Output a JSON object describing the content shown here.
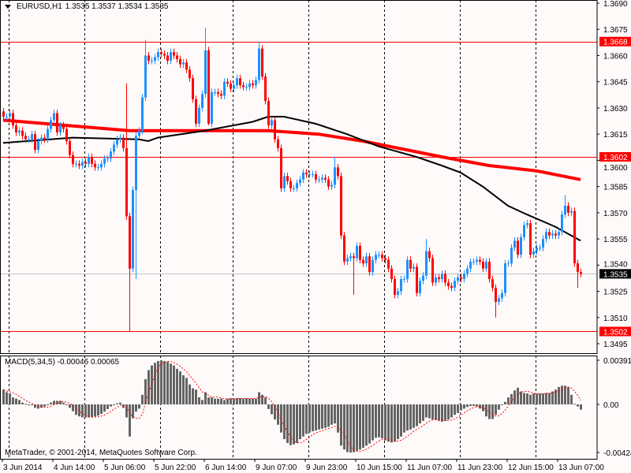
{
  "header": {
    "symbol_timeframe": "EURUSD,H1",
    "ohlc_text": "1.3535 1.3537 1.3534 1.3535",
    "menu_icon": "triangle-down-icon"
  },
  "macd_label": "MACD(5,34,5) -0.00046 0.00065",
  "copyright": "MetaTrader, © 2001-2014, MetaQuotes Software Corp.",
  "colors": {
    "background": "#fffafa",
    "bull": "#1e90ff",
    "bear": "#ff0000",
    "ma_slow": "#ff0000",
    "ma_fast": "#000000",
    "macd_hist": "#646464",
    "macd_signal": "#ff0000",
    "level_line": "#ff0000",
    "bid_line": "#c0c0c0"
  },
  "chart_data": [
    {
      "type": "candlestick",
      "symbol": "EURUSD",
      "timeframe": "H1",
      "ylim": [
        1.3495,
        1.369
      ],
      "y_ticks": [
        "1.3690",
        "1.3675",
        "1.3660",
        "1.3645",
        "1.3630",
        "1.3615",
        "1.3600",
        "1.3585",
        "1.3570",
        "1.3555",
        "1.3540",
        "1.3525",
        "1.3510",
        "1.3495"
      ],
      "x_tick_labels": [
        {
          "bar": 0,
          "label": "3 Jun 2014"
        },
        {
          "bar": 16,
          "label": "4 Jun 14:00"
        },
        {
          "bar": 32,
          "label": "5 Jun 06:00"
        },
        {
          "bar": 48,
          "label": "5 Jun 22:00"
        },
        {
          "bar": 64,
          "label": "6 Jun 14:00"
        },
        {
          "bar": 80,
          "label": "9 Jun 07:00"
        },
        {
          "bar": 96,
          "label": "9 Jun 23:00"
        },
        {
          "bar": 112,
          "label": "10 Jun 15:00"
        },
        {
          "bar": 128,
          "label": "11 Jun 07:00"
        },
        {
          "bar": 144,
          "label": "11 Jun 23:00"
        },
        {
          "bar": 160,
          "label": "12 Jun 15:00"
        },
        {
          "bar": 176,
          "label": "13 Jun 07:00"
        }
      ],
      "first_open": 1.3628,
      "close": [
        1.3625,
        1.3625,
        1.3627,
        1.362,
        1.3616,
        1.3617,
        1.3614,
        1.3612,
        1.3612,
        1.3615,
        1.3606,
        1.3611,
        1.3613,
        1.3612,
        1.3618,
        1.3623,
        1.3627,
        1.3616,
        1.362,
        1.3618,
        1.3611,
        1.3603,
        1.3598,
        1.3598,
        1.3597,
        1.3599,
        1.3598,
        1.3602,
        1.3598,
        1.3596,
        1.3596,
        1.3598,
        1.3601,
        1.3601,
        1.3605,
        1.3609,
        1.3612,
        1.3613,
        1.3607,
        1.3568,
        1.3538,
        1.3583,
        1.3614,
        1.3617,
        1.3636,
        1.366,
        1.3657,
        1.3657,
        1.3659,
        1.3662,
        1.3661,
        1.366,
        1.3657,
        1.3662,
        1.366,
        1.3658,
        1.3655,
        1.3656,
        1.3652,
        1.3647,
        1.3635,
        1.3621,
        1.363,
        1.3638,
        1.3663,
        1.3621,
        1.3639,
        1.3639,
        1.3638,
        1.3637,
        1.3645,
        1.3644,
        1.3641,
        1.3643,
        1.3647,
        1.3643,
        1.3642,
        1.3642,
        1.3644,
        1.3643,
        1.3646,
        1.3664,
        1.3648,
        1.3634,
        1.362,
        1.3623,
        1.3612,
        1.3607,
        1.3584,
        1.3591,
        1.3588,
        1.3584,
        1.3584,
        1.3587,
        1.3589,
        1.3593,
        1.3592,
        1.3592,
        1.3592,
        1.3589,
        1.3589,
        1.359,
        1.3589,
        1.3585,
        1.3586,
        1.3596,
        1.3591,
        1.3557,
        1.3542,
        1.3544,
        1.3545,
        1.3544,
        1.3551,
        1.3543,
        1.3541,
        1.3545,
        1.3536,
        1.3543,
        1.3546,
        1.3546,
        1.3544,
        1.3543,
        1.3538,
        1.3532,
        1.3523,
        1.3525,
        1.3532,
        1.3532,
        1.3543,
        1.3538,
        1.3539,
        1.3524,
        1.3531,
        1.3534,
        1.3548,
        1.3544,
        1.353,
        1.3533,
        1.3532,
        1.3535,
        1.353,
        1.3528,
        1.3527,
        1.3531,
        1.3533,
        1.3532,
        1.3535,
        1.3538,
        1.3542,
        1.3542,
        1.3543,
        1.3542,
        1.3538,
        1.3542,
        1.3532,
        1.3527,
        1.3519,
        1.3521,
        1.3524,
        1.3541,
        1.3541,
        1.355,
        1.3554,
        1.3546,
        1.3556,
        1.3563,
        1.3564,
        1.3546,
        1.3548,
        1.355,
        1.355,
        1.3555,
        1.3559,
        1.3557,
        1.3558,
        1.3557,
        1.3559,
        1.3569,
        1.3574,
        1.357,
        1.3571,
        1.3541,
        1.3536,
        1.3535
      ],
      "wick_extremes": [
        {
          "bar": 39,
          "high": 1.3644
        },
        {
          "bar": 40,
          "low": 1.3502
        },
        {
          "bar": 42,
          "low": 1.3532
        },
        {
          "bar": 45,
          "high": 1.3669
        },
        {
          "bar": 64,
          "high": 1.3676
        },
        {
          "bar": 65,
          "low": 1.362
        },
        {
          "bar": 81,
          "high": 1.3668
        },
        {
          "bar": 105,
          "high": 1.3602
        },
        {
          "bar": 111,
          "low": 1.3523
        },
        {
          "bar": 134,
          "high": 1.3555
        },
        {
          "bar": 156,
          "low": 1.351
        },
        {
          "bar": 178,
          "high": 1.358
        },
        {
          "bar": 182,
          "low": 1.3527
        }
      ],
      "moving_averages": [
        {
          "color": "#ff0000",
          "points": [
            [
              0,
              1.3623
            ],
            [
              40,
              1.3617
            ],
            [
              62,
              1.3617
            ],
            [
              84,
              1.3617
            ],
            [
              100,
              1.3615
            ],
            [
              114,
              1.3611
            ],
            [
              139,
              1.3602
            ],
            [
              154,
              1.3597
            ],
            [
              169,
              1.3594
            ],
            [
              183,
              1.3589
            ]
          ]
        },
        {
          "color": "#000000",
          "points": [
            [
              0,
              1.361
            ],
            [
              22,
              1.3613
            ],
            [
              43,
              1.3612
            ],
            [
              46,
              1.3611
            ],
            [
              49,
              1.3613
            ],
            [
              64,
              1.3617
            ],
            [
              79,
              1.3622
            ],
            [
              84,
              1.3625
            ],
            [
              89,
              1.3625
            ],
            [
              99,
              1.3621
            ],
            [
              109,
              1.3615
            ],
            [
              119,
              1.3608
            ],
            [
              131,
              1.3602
            ],
            [
              139,
              1.3597
            ],
            [
              145,
              1.3593
            ],
            [
              152,
              1.3585
            ],
            [
              160,
              1.3574
            ],
            [
              166,
              1.3569
            ],
            [
              175,
              1.3562
            ],
            [
              183,
              1.3554
            ]
          ]
        }
      ],
      "level_lines": [
        "1.3668",
        "1.3602",
        "1.3502"
      ],
      "bid_line": "1.3535"
    },
    {
      "type": "bar",
      "indicator": "MACD(5,34,5)",
      "signal_period": 5,
      "ylim": [
        -0.00424,
        0.00391
      ],
      "y_ticks": [
        "0.00391",
        "0.00",
        "-0.00424"
      ],
      "main_last": -0.00046,
      "signal_last": 0.00065,
      "values": [
        0.00131,
        0.00108,
        0.00097,
        0.00062,
        0.00051,
        0.00039,
        0.00016,
        5e-05,
        -7e-05,
        -7e-05,
        -0.0003,
        -0.00037,
        -0.0003,
        -0.00018,
        -7e-05,
        0.00016,
        0.00032,
        0.00032,
        0.00032,
        0.00016,
        -7e-05,
        -0.0003,
        -0.0006,
        -0.00092,
        -0.00106,
        -0.00115,
        -0.00115,
        -0.00115,
        -0.0011,
        -0.00106,
        -0.00099,
        -0.00083,
        -0.00064,
        -0.00041,
        -0.00018,
        -7e-05,
        9e-05,
        0.00016,
        -0.0003,
        -0.00115,
        -0.00283,
        -0.00122,
        -0.00064,
        -0.00037,
        0.00085,
        0.00223,
        0.00304,
        0.00345,
        0.00368,
        0.00384,
        0.00391,
        0.00384,
        0.00377,
        0.00361,
        0.00345,
        0.00315,
        0.00292,
        0.00258,
        0.00235,
        0.00177,
        0.00143,
        0.00131,
        0.00062,
        0.00039,
        0.00108,
        0.00062,
        0.00062,
        0.00051,
        0.00051,
        0.00051,
        0.00039,
        0.00051,
        0.00055,
        0.00051,
        0.00055,
        0.00055,
        0.00051,
        0.00055,
        0.00051,
        0.00051,
        0.00051,
        0.00108,
        0.00085,
        0.00062,
        -0.00041,
        -0.00087,
        -0.00133,
        -0.00179,
        -0.00248,
        -0.00306,
        -0.0034,
        -0.00359,
        -0.00352,
        -0.0034,
        -0.00306,
        -0.00283,
        -0.0026,
        -0.00248,
        -0.00237,
        -0.0023,
        -0.00221,
        -0.00214,
        -0.00207,
        -0.00198,
        -0.00179,
        -0.00168,
        -0.00248,
        -0.00363,
        -0.00398,
        -0.00421,
        -0.00424,
        -0.00421,
        -0.00409,
        -0.00398,
        -0.00382,
        -0.00363,
        -0.00345,
        -0.00317,
        -0.00294,
        -0.0029,
        -0.00299,
        -0.00317,
        -0.00329,
        -0.00336,
        -0.00329,
        -0.00306,
        -0.00283,
        -0.00248,
        -0.0023,
        -0.00221,
        -0.00207,
        -0.00191,
        -0.00168,
        -0.00145,
        -0.00115,
        -0.00122,
        -0.00133,
        -0.00138,
        -0.00145,
        -0.00152,
        -0.00145,
        -0.00133,
        -0.00115,
        -0.00092,
        -0.00076,
        -0.00053,
        -0.00037,
        -0.00023,
        -0.00014,
        -0.00014,
        -0.00018,
        -0.00037,
        -0.0006,
        -0.00106,
        -0.00129,
        -0.00129,
        -0.00092,
        -0.00046,
        -7e-05,
        0.00023,
        0.00062,
        0.00092,
        0.00124,
        0.00147,
        0.00115,
        0.00101,
        0.00097,
        0.00085,
        0.00097,
        0.00092,
        0.00097,
        0.00097,
        0.00101,
        0.00101,
        0.00115,
        0.00131,
        0.00154,
        0.00166,
        0.00166,
        0.00154,
        0.00085,
        5e-05,
        -0.00018,
        -0.00046
      ]
    }
  ]
}
